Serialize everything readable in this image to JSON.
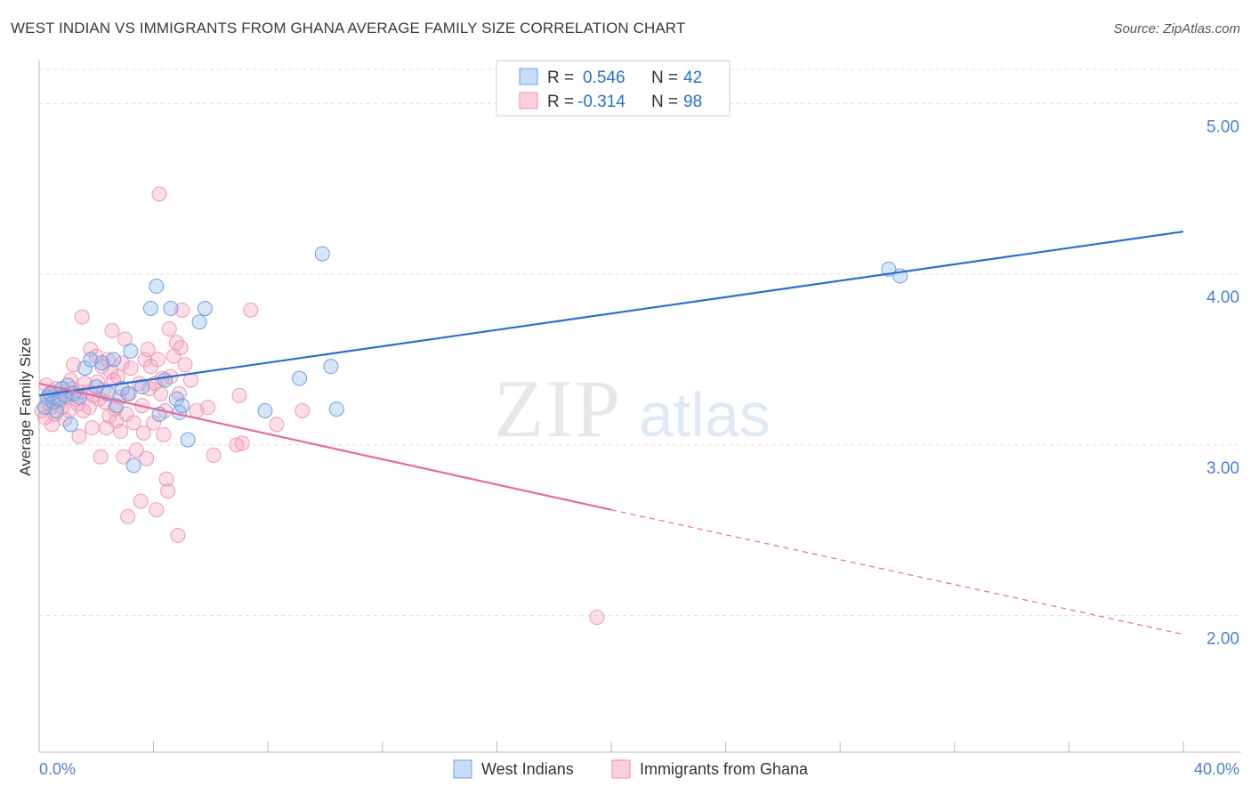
{
  "title": "WEST INDIAN VS IMMIGRANTS FROM GHANA AVERAGE FAMILY SIZE CORRELATION CHART",
  "source": "Source: ZipAtlas.com",
  "watermark": {
    "zip": "ZIP",
    "atlas": "atlas"
  },
  "colors": {
    "blue": "#6aa0e6",
    "blue_line": "#2b6fce",
    "pink": "#f08db0",
    "pink_line": "#e56b96",
    "tick_text": "#4a7fd0"
  },
  "legend": {
    "rows": [
      {
        "r_label": "R =",
        "r_value": "0.546",
        "n_label": "N =",
        "n_value": "42"
      },
      {
        "r_label": "R =",
        "r_value": "-0.314",
        "n_label": "N =",
        "n_value": "98"
      }
    ]
  },
  "bottom_legend": [
    "West Indians",
    "Immigrants from Ghana"
  ],
  "chart_data": {
    "type": "scatter",
    "title": "WEST INDIAN VS IMMIGRANTS FROM GHANA AVERAGE FAMILY SIZE CORRELATION CHART",
    "xlabel": "",
    "ylabel": "Average Family Size",
    "xlim": [
      0,
      40
    ],
    "ylim": [
      1.2,
      5.2
    ],
    "x_tick_labels": [
      "0.0%",
      "40.0%"
    ],
    "y_ticks": [
      2.0,
      3.0,
      4.0,
      5.0
    ],
    "y_tick_labels": [
      "2.00",
      "3.00",
      "4.00",
      "5.00"
    ],
    "grid": true,
    "series": [
      {
        "name": "West Indians",
        "color": "#6aa0e6",
        "trend": {
          "x": [
            0.0,
            40.0
          ],
          "y": [
            3.29,
            4.25
          ]
        },
        "points": [
          [
            0.2,
            3.22
          ],
          [
            0.3,
            3.28
          ],
          [
            0.4,
            3.3
          ],
          [
            0.5,
            3.25
          ],
          [
            0.6,
            3.2
          ],
          [
            0.7,
            3.27
          ],
          [
            0.8,
            3.33
          ],
          [
            0.9,
            3.29
          ],
          [
            1.0,
            3.35
          ],
          [
            1.1,
            3.12
          ],
          [
            1.2,
            3.3
          ],
          [
            1.4,
            3.28
          ],
          [
            1.6,
            3.45
          ],
          [
            1.8,
            3.5
          ],
          [
            2.0,
            3.34
          ],
          [
            2.2,
            3.48
          ],
          [
            2.4,
            3.3
          ],
          [
            2.6,
            3.5
          ],
          [
            2.7,
            3.23
          ],
          [
            2.9,
            3.33
          ],
          [
            3.1,
            3.3
          ],
          [
            3.2,
            3.55
          ],
          [
            3.3,
            2.88
          ],
          [
            3.6,
            3.34
          ],
          [
            3.9,
            3.8
          ],
          [
            4.1,
            3.93
          ],
          [
            4.2,
            3.18
          ],
          [
            4.4,
            3.38
          ],
          [
            4.6,
            3.8
          ],
          [
            4.8,
            3.27
          ],
          [
            4.9,
            3.19
          ],
          [
            5.0,
            3.23
          ],
          [
            5.2,
            3.03
          ],
          [
            5.6,
            3.72
          ],
          [
            5.8,
            3.8
          ],
          [
            7.9,
            3.2
          ],
          [
            9.1,
            3.39
          ],
          [
            9.9,
            4.12
          ],
          [
            10.2,
            3.46
          ],
          [
            10.4,
            3.21
          ],
          [
            29.7,
            4.03
          ],
          [
            30.1,
            3.99
          ]
        ]
      },
      {
        "name": "Immigrants from Ghana",
        "color": "#f08db0",
        "trend": {
          "x": [
            0.0,
            20.0
          ],
          "y": [
            3.36,
            2.62
          ]
        },
        "trend_dashed": {
          "x": [
            20.0,
            40.0
          ],
          "y": [
            2.62,
            1.89
          ]
        },
        "points": [
          [
            0.1,
            3.2
          ],
          [
            0.2,
            3.16
          ],
          [
            0.3,
            3.25
          ],
          [
            0.35,
            3.3
          ],
          [
            0.4,
            3.22
          ],
          [
            0.5,
            3.28
          ],
          [
            0.55,
            3.18
          ],
          [
            0.6,
            3.33
          ],
          [
            0.7,
            3.26
          ],
          [
            0.8,
            3.22
          ],
          [
            0.85,
            3.3
          ],
          [
            0.9,
            3.15
          ],
          [
            1.0,
            3.28
          ],
          [
            1.05,
            3.2
          ],
          [
            1.1,
            3.38
          ],
          [
            1.15,
            3.33
          ],
          [
            1.2,
            3.47
          ],
          [
            1.3,
            3.27
          ],
          [
            1.35,
            3.24
          ],
          [
            1.4,
            3.05
          ],
          [
            1.45,
            3.31
          ],
          [
            1.5,
            3.75
          ],
          [
            1.55,
            3.2
          ],
          [
            1.6,
            3.36
          ],
          [
            1.7,
            3.31
          ],
          [
            1.75,
            3.22
          ],
          [
            1.8,
            3.56
          ],
          [
            1.85,
            3.1
          ],
          [
            1.9,
            3.29
          ],
          [
            2.0,
            3.52
          ],
          [
            2.05,
            3.37
          ],
          [
            2.1,
            3.27
          ],
          [
            2.15,
            2.93
          ],
          [
            2.2,
            3.46
          ],
          [
            2.25,
            3.32
          ],
          [
            2.3,
            3.25
          ],
          [
            2.35,
            3.1
          ],
          [
            2.4,
            3.5
          ],
          [
            2.45,
            3.17
          ],
          [
            2.5,
            3.43
          ],
          [
            2.55,
            3.67
          ],
          [
            2.6,
            3.38
          ],
          [
            2.65,
            3.21
          ],
          [
            2.7,
            3.14
          ],
          [
            2.75,
            3.4
          ],
          [
            2.8,
            3.28
          ],
          [
            2.85,
            3.08
          ],
          [
            2.9,
            3.48
          ],
          [
            2.95,
            2.93
          ],
          [
            3.0,
            3.62
          ],
          [
            3.05,
            3.18
          ],
          [
            3.1,
            2.58
          ],
          [
            3.15,
            3.3
          ],
          [
            3.2,
            3.45
          ],
          [
            3.3,
            3.13
          ],
          [
            3.4,
            2.97
          ],
          [
            3.5,
            3.36
          ],
          [
            3.55,
            2.67
          ],
          [
            3.6,
            3.23
          ],
          [
            3.65,
            3.07
          ],
          [
            3.7,
            3.5
          ],
          [
            3.75,
            2.92
          ],
          [
            3.8,
            3.56
          ],
          [
            3.85,
            3.33
          ],
          [
            3.9,
            3.46
          ],
          [
            4.0,
            3.13
          ],
          [
            4.05,
            3.36
          ],
          [
            4.1,
            2.62
          ],
          [
            4.15,
            3.5
          ],
          [
            4.2,
            4.47
          ],
          [
            4.25,
            3.3
          ],
          [
            4.3,
            3.39
          ],
          [
            4.35,
            3.06
          ],
          [
            4.4,
            3.2
          ],
          [
            4.45,
            2.8
          ],
          [
            4.5,
            2.73
          ],
          [
            4.55,
            3.68
          ],
          [
            4.6,
            3.4
          ],
          [
            4.7,
            3.52
          ],
          [
            4.8,
            3.6
          ],
          [
            4.85,
            2.47
          ],
          [
            4.9,
            3.3
          ],
          [
            4.95,
            3.57
          ],
          [
            5.0,
            3.79
          ],
          [
            5.1,
            3.47
          ],
          [
            5.3,
            3.38
          ],
          [
            5.5,
            3.2
          ],
          [
            5.9,
            3.22
          ],
          [
            6.1,
            2.94
          ],
          [
            6.9,
            3.0
          ],
          [
            7.0,
            3.29
          ],
          [
            7.1,
            3.01
          ],
          [
            7.4,
            3.79
          ],
          [
            8.3,
            3.12
          ],
          [
            9.2,
            3.2
          ],
          [
            19.5,
            1.99
          ],
          [
            0.25,
            3.35
          ],
          [
            0.45,
            3.12
          ]
        ]
      }
    ]
  }
}
